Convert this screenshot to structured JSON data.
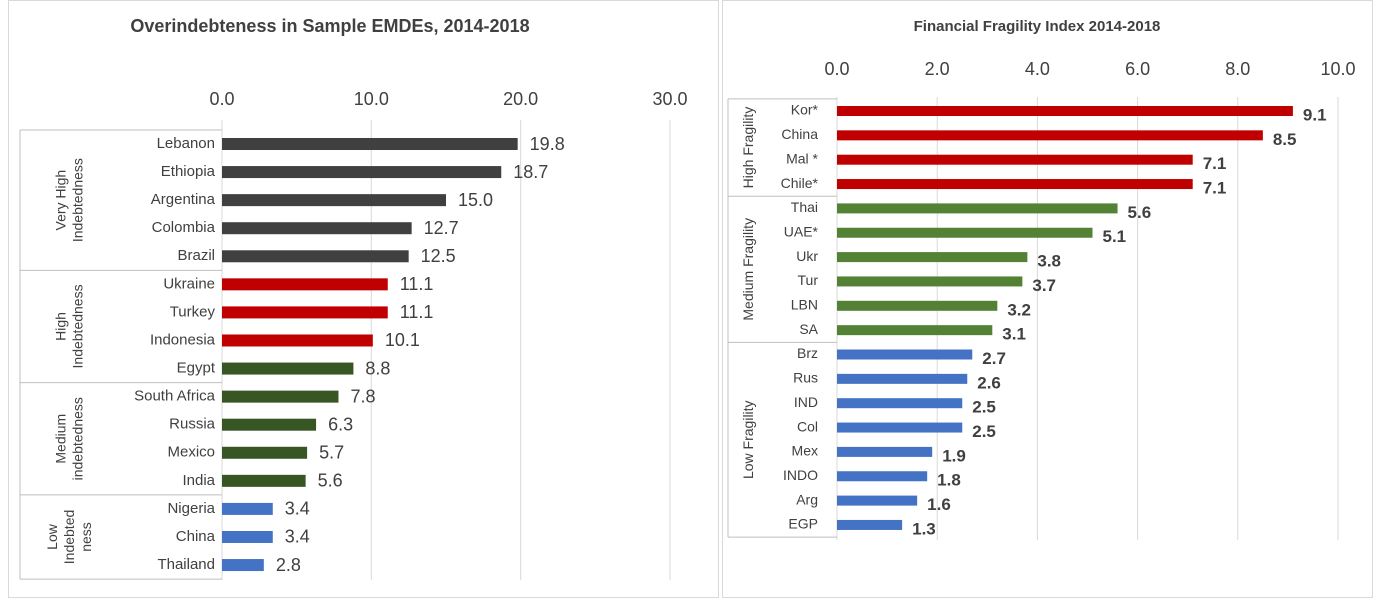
{
  "chart_data": [
    {
      "type": "bar",
      "title": "Overindebteness in Sample EMDEs, 2014-2018",
      "xlim": [
        0,
        30
      ],
      "xticks": [
        {
          "value": 0,
          "label": "0.0"
        },
        {
          "value": 10,
          "label": "10.0"
        },
        {
          "value": 20,
          "label": "20.0"
        },
        {
          "value": 30,
          "label": "30.0"
        }
      ],
      "grid": true,
      "bold_labels": false,
      "groups": [
        {
          "name": [
            "Very High",
            "Indebtedness"
          ],
          "categories": [
            "Lebanon",
            "Ethiopia",
            "Argentina",
            "Colombia",
            "Brazil"
          ],
          "values": [
            19.8,
            18.7,
            15,
            12.7,
            12.5
          ],
          "value_labels": [
            "19.8",
            "18.7",
            "15.0",
            "12.7",
            "12.5"
          ],
          "colors": [
            "#404040",
            "#404040",
            "#404040",
            "#404040",
            "#404040"
          ]
        },
        {
          "name": [
            "High",
            "Indebtedness"
          ],
          "categories": [
            "Ukraine",
            "Turkey",
            "Indonesia",
            "Egypt"
          ],
          "values": [
            11.1,
            11.1,
            10.1,
            8.8
          ],
          "value_labels": [
            "11.1",
            "11.1",
            "10.1",
            "8.8"
          ],
          "colors": [
            "#c00000",
            "#c00000",
            "#c00000",
            "#375623"
          ]
        },
        {
          "name": [
            "Medium",
            "indebtedness"
          ],
          "categories": [
            "South Africa",
            "Russia",
            "Mexico",
            "India"
          ],
          "values": [
            7.8,
            6.3,
            5.7,
            5.6
          ],
          "value_labels": [
            "7.8",
            "6.3",
            "5.7",
            "5.6"
          ],
          "colors": [
            "#375623",
            "#375623",
            "#375623",
            "#375623"
          ]
        },
        {
          "name": [
            "Low",
            "Indebted",
            "ness"
          ],
          "categories": [
            "Nigeria",
            "China",
            "Thailand"
          ],
          "values": [
            3.4,
            3.4,
            2.8
          ],
          "value_labels": [
            "3.4",
            "3.4",
            "2.8"
          ],
          "colors": [
            "#4472c4",
            "#4472c4",
            "#4472c4"
          ]
        }
      ]
    },
    {
      "type": "bar",
      "title": "Financial Fragility Index  2014-2018",
      "xlim": [
        0,
        10
      ],
      "xticks": [
        {
          "value": 0,
          "label": "0.0"
        },
        {
          "value": 2,
          "label": "2.0"
        },
        {
          "value": 4,
          "label": "4.0"
        },
        {
          "value": 6,
          "label": "6.0"
        },
        {
          "value": 8,
          "label": "8.0"
        },
        {
          "value": 10,
          "label": "10.0"
        }
      ],
      "grid": true,
      "bold_labels": true,
      "groups": [
        {
          "name": [
            "High Fragility"
          ],
          "categories": [
            "Kor*",
            "China",
            "Mal *",
            "Chile*"
          ],
          "values": [
            9.1,
            8.5,
            7.1,
            7.1
          ],
          "colors": [
            "#c00000",
            "#c00000",
            "#c00000",
            "#c00000"
          ]
        },
        {
          "name": [
            "Medium Fragility"
          ],
          "categories": [
            "Thai",
            "UAE*",
            "Ukr",
            "Tur",
            "LBN",
            "SA"
          ],
          "values": [
            5.6,
            5.1,
            3.8,
            3.7,
            3.2,
            3.1
          ],
          "colors": [
            "#548235",
            "#548235",
            "#548235",
            "#548235",
            "#548235",
            "#548235"
          ]
        },
        {
          "name": [
            "Low Fragility"
          ],
          "categories": [
            "Brz",
            "Rus",
            "IND",
            "Col",
            "Mex",
            "INDO",
            "Arg",
            "EGP"
          ],
          "values": [
            2.7,
            2.6,
            2.5,
            2.5,
            1.9,
            1.8,
            1.6,
            1.3
          ],
          "colors": [
            "#4472c4",
            "#4472c4",
            "#4472c4",
            "#4472c4",
            "#4472c4",
            "#4472c4",
            "#4472c4",
            "#4472c4"
          ]
        }
      ]
    }
  ]
}
